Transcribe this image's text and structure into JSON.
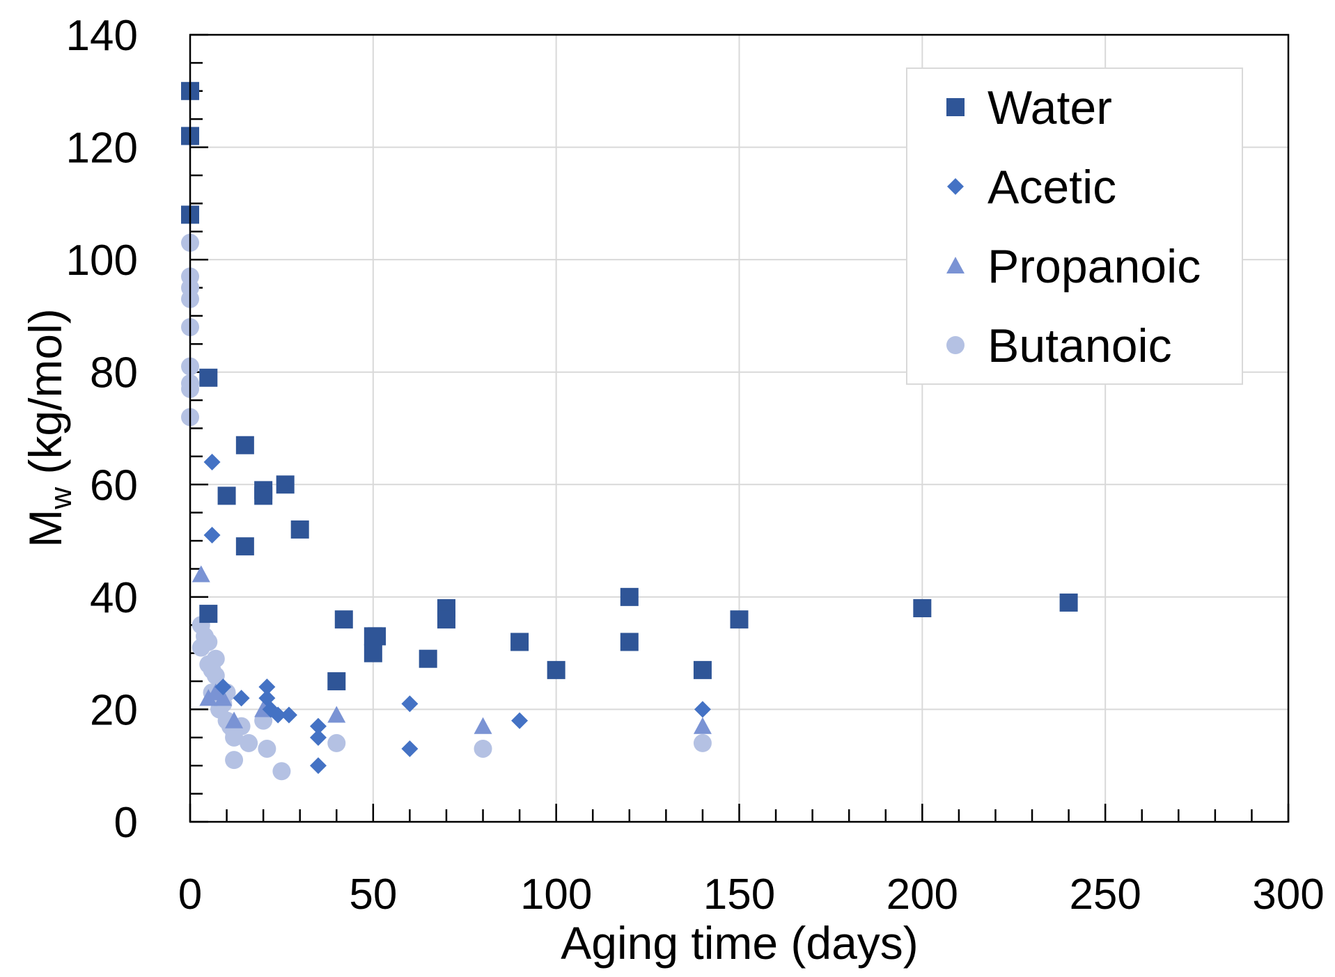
{
  "chart_data": {
    "type": "scatter",
    "title": "",
    "xlabel": "Aging time (days)",
    "ylabel_main": "M",
    "ylabel_sub": "w",
    "ylabel_unit": "(kg/mol)",
    "xlim": [
      0,
      300
    ],
    "ylim": [
      0,
      140
    ],
    "x_ticks": [
      0,
      50,
      100,
      150,
      200,
      250,
      300
    ],
    "y_ticks": [
      0,
      20,
      40,
      60,
      80,
      100,
      120,
      140
    ],
    "x_minor_step": 10,
    "y_minor_step": 5,
    "grid": true,
    "legend_position": "top-right",
    "series": [
      {
        "name": "Water",
        "marker": "square",
        "color": "#2f5597",
        "points": [
          [
            0,
            130
          ],
          [
            0,
            122
          ],
          [
            0,
            108
          ],
          [
            5,
            79
          ],
          [
            5,
            37
          ],
          [
            15,
            67
          ],
          [
            15,
            49
          ],
          [
            10,
            58
          ],
          [
            20,
            59
          ],
          [
            20,
            58
          ],
          [
            26,
            60
          ],
          [
            30,
            52
          ],
          [
            42,
            36
          ],
          [
            40,
            25
          ],
          [
            50,
            33
          ],
          [
            51,
            33
          ],
          [
            50,
            30
          ],
          [
            70,
            38
          ],
          [
            70,
            36
          ],
          [
            65,
            29
          ],
          [
            90,
            32
          ],
          [
            100,
            27
          ],
          [
            120,
            40
          ],
          [
            120,
            32
          ],
          [
            140,
            27
          ],
          [
            150,
            36
          ],
          [
            200,
            38
          ],
          [
            240,
            39
          ]
        ]
      },
      {
        "name": "Acetic",
        "marker": "diamond",
        "color": "#4472c4",
        "points": [
          [
            6,
            64
          ],
          [
            6,
            51
          ],
          [
            9,
            24
          ],
          [
            14,
            22
          ],
          [
            21,
            24
          ],
          [
            21,
            22
          ],
          [
            22,
            20
          ],
          [
            24,
            19
          ],
          [
            27,
            19
          ],
          [
            35,
            17
          ],
          [
            35,
            15
          ],
          [
            35,
            10
          ],
          [
            60,
            21
          ],
          [
            60,
            13
          ],
          [
            90,
            18
          ],
          [
            140,
            20
          ]
        ]
      },
      {
        "name": "Propanoic",
        "marker": "triangle",
        "color": "#7a93d4",
        "points": [
          [
            3,
            44
          ],
          [
            5,
            22
          ],
          [
            7,
            23
          ],
          [
            9,
            22
          ],
          [
            12,
            18
          ],
          [
            20,
            20
          ],
          [
            40,
            19
          ],
          [
            80,
            17
          ],
          [
            140,
            17
          ]
        ]
      },
      {
        "name": "Butanoic",
        "marker": "circle",
        "color": "#b4c1e3",
        "points": [
          [
            0,
            103
          ],
          [
            0,
            97
          ],
          [
            0,
            95
          ],
          [
            0,
            93
          ],
          [
            0,
            88
          ],
          [
            0,
            81
          ],
          [
            0,
            78
          ],
          [
            0,
            77
          ],
          [
            0,
            72
          ],
          [
            3,
            35
          ],
          [
            4,
            33
          ],
          [
            5,
            32
          ],
          [
            3,
            31
          ],
          [
            5,
            28
          ],
          [
            6,
            27
          ],
          [
            7,
            29
          ],
          [
            7,
            26
          ],
          [
            6,
            23
          ],
          [
            8,
            22
          ],
          [
            8,
            20
          ],
          [
            9,
            21
          ],
          [
            10,
            18
          ],
          [
            10,
            23
          ],
          [
            11,
            17
          ],
          [
            12,
            16
          ],
          [
            12,
            15
          ],
          [
            14,
            17
          ],
          [
            12,
            11
          ],
          [
            16,
            14
          ],
          [
            20,
            18
          ],
          [
            21,
            13
          ],
          [
            25,
            9
          ],
          [
            40,
            14
          ],
          [
            80,
            13
          ],
          [
            140,
            14
          ]
        ]
      }
    ]
  }
}
